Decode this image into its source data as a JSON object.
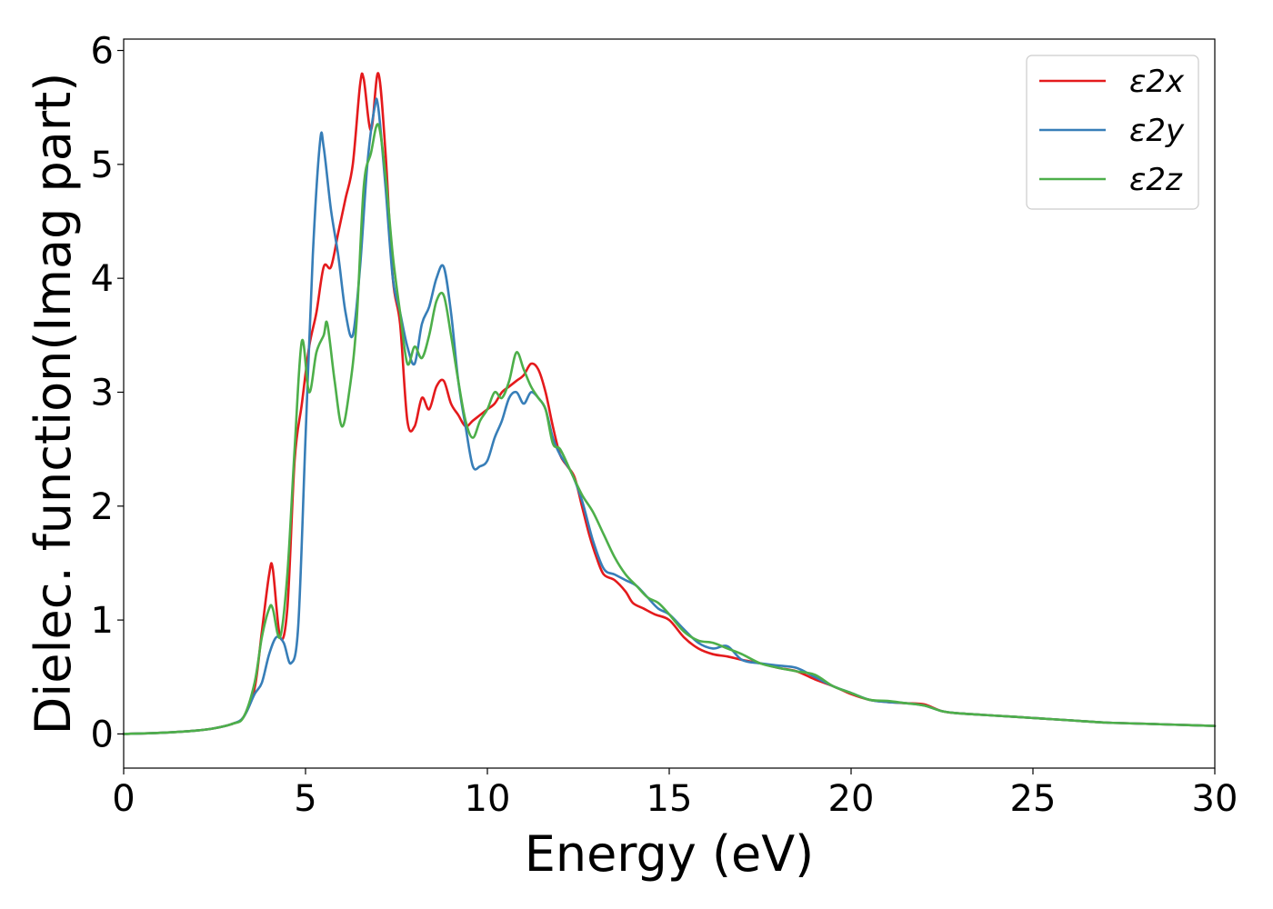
{
  "chart_data": {
    "type": "line",
    "xlabel": "Energy (eV)",
    "ylabel": "Dielec. function(Imag part)",
    "xlim": [
      0,
      30
    ],
    "ylim": [
      -0.3,
      6.1
    ],
    "xticks": [
      0,
      5,
      10,
      15,
      20,
      25,
      30
    ],
    "yticks": [
      0,
      1,
      2,
      3,
      4,
      5,
      6
    ],
    "grid": false,
    "legend_position": "top-right",
    "series": [
      {
        "name": "ε2x",
        "color": "#e41a1c",
        "x": [
          0,
          1,
          2,
          2.5,
          3,
          3.3,
          3.6,
          3.8,
          4.0,
          4.1,
          4.3,
          4.5,
          4.7,
          4.9,
          5.1,
          5.3,
          5.5,
          5.7,
          5.9,
          6.1,
          6.3,
          6.5,
          6.6,
          6.8,
          7.0,
          7.2,
          7.4,
          7.6,
          7.8,
          8.0,
          8.2,
          8.4,
          8.6,
          8.8,
          9.0,
          9.2,
          9.4,
          9.6,
          9.8,
          10.0,
          10.2,
          10.4,
          10.6,
          10.8,
          11.0,
          11.2,
          11.4,
          11.6,
          11.8,
          12.0,
          12.2,
          12.4,
          12.6,
          12.8,
          13.0,
          13.2,
          13.5,
          13.8,
          14.0,
          14.3,
          14.6,
          15.0,
          15.4,
          15.8,
          16.2,
          16.6,
          17.0,
          17.5,
          18.0,
          18.5,
          19.0,
          19.5,
          20.0,
          20.5,
          21.0,
          21.5,
          22.0,
          22.5,
          23.0,
          24.0,
          25.0,
          26.0,
          27.0,
          28.0,
          29.0,
          30.0
        ],
        "values": [
          0.0,
          0.01,
          0.03,
          0.05,
          0.09,
          0.15,
          0.4,
          0.9,
          1.4,
          1.45,
          0.85,
          1.1,
          2.4,
          2.9,
          3.4,
          3.7,
          4.1,
          4.1,
          4.4,
          4.7,
          5.0,
          5.7,
          5.75,
          5.3,
          5.8,
          5.1,
          4.0,
          3.6,
          2.75,
          2.7,
          2.95,
          2.85,
          3.05,
          3.1,
          2.9,
          2.8,
          2.7,
          2.75,
          2.8,
          2.85,
          2.9,
          3.0,
          3.05,
          3.1,
          3.15,
          3.25,
          3.2,
          3.0,
          2.7,
          2.45,
          2.35,
          2.25,
          2.0,
          1.75,
          1.55,
          1.4,
          1.35,
          1.25,
          1.15,
          1.1,
          1.05,
          1.0,
          0.85,
          0.75,
          0.7,
          0.68,
          0.65,
          0.62,
          0.58,
          0.55,
          0.48,
          0.42,
          0.35,
          0.3,
          0.28,
          0.27,
          0.26,
          0.2,
          0.18,
          0.16,
          0.14,
          0.12,
          0.1,
          0.09,
          0.08,
          0.07
        ]
      },
      {
        "name": "ε2y",
        "color": "#377eb8",
        "x": [
          0,
          1,
          2,
          2.5,
          3,
          3.3,
          3.6,
          3.8,
          4.0,
          4.2,
          4.4,
          4.6,
          4.8,
          5.0,
          5.2,
          5.4,
          5.5,
          5.7,
          5.9,
          6.1,
          6.3,
          6.5,
          6.7,
          6.9,
          7.0,
          7.2,
          7.4,
          7.6,
          7.8,
          8.0,
          8.2,
          8.4,
          8.6,
          8.8,
          9.0,
          9.2,
          9.4,
          9.6,
          9.8,
          10.0,
          10.2,
          10.4,
          10.6,
          10.8,
          11.0,
          11.2,
          11.4,
          11.6,
          11.8,
          12.0,
          12.3,
          12.6,
          12.9,
          13.2,
          13.5,
          13.8,
          14.1,
          14.4,
          14.7,
          15.0,
          15.4,
          15.8,
          16.2,
          16.6,
          17.0,
          17.5,
          18.0,
          18.5,
          19.0,
          19.5,
          20.0,
          20.5,
          21.0,
          21.5,
          22.0,
          22.5,
          23.0,
          24.0,
          25.0,
          26.0,
          27.0,
          28.0,
          29.0,
          30.0
        ],
        "values": [
          0.0,
          0.01,
          0.03,
          0.05,
          0.09,
          0.15,
          0.35,
          0.45,
          0.7,
          0.85,
          0.8,
          0.62,
          0.95,
          2.6,
          4.2,
          5.2,
          5.15,
          4.6,
          4.2,
          3.7,
          3.5,
          4.1,
          5.0,
          5.5,
          5.5,
          4.8,
          4.0,
          3.7,
          3.4,
          3.25,
          3.6,
          3.75,
          4.0,
          4.1,
          3.7,
          3.1,
          2.7,
          2.35,
          2.35,
          2.4,
          2.6,
          2.75,
          2.95,
          3.0,
          2.9,
          3.0,
          2.95,
          2.85,
          2.6,
          2.45,
          2.3,
          2.05,
          1.7,
          1.45,
          1.4,
          1.35,
          1.3,
          1.2,
          1.1,
          1.05,
          0.92,
          0.8,
          0.75,
          0.77,
          0.65,
          0.62,
          0.6,
          0.58,
          0.5,
          0.42,
          0.36,
          0.3,
          0.28,
          0.27,
          0.25,
          0.2,
          0.18,
          0.16,
          0.14,
          0.12,
          0.1,
          0.09,
          0.08,
          0.07
        ]
      },
      {
        "name": "ε2z",
        "color": "#4daf4a",
        "x": [
          0,
          1,
          2,
          2.5,
          3,
          3.3,
          3.6,
          3.8,
          4.0,
          4.1,
          4.3,
          4.5,
          4.7,
          4.9,
          5.1,
          5.3,
          5.5,
          5.6,
          5.8,
          6.0,
          6.2,
          6.4,
          6.6,
          6.8,
          7.0,
          7.2,
          7.4,
          7.6,
          7.8,
          8.0,
          8.2,
          8.4,
          8.6,
          8.8,
          9.0,
          9.2,
          9.4,
          9.6,
          9.8,
          10.0,
          10.2,
          10.4,
          10.6,
          10.8,
          11.0,
          11.2,
          11.4,
          11.6,
          11.8,
          12.0,
          12.3,
          12.6,
          12.9,
          13.2,
          13.5,
          13.8,
          14.1,
          14.4,
          14.7,
          15.0,
          15.4,
          15.8,
          16.2,
          16.6,
          17.0,
          17.5,
          18.0,
          18.5,
          19.0,
          19.5,
          20.0,
          20.5,
          21.0,
          21.5,
          22.0,
          22.5,
          23.0,
          24.0,
          25.0,
          26.0,
          27.0,
          28.0,
          29.0,
          30.0
        ],
        "values": [
          0.0,
          0.01,
          0.03,
          0.05,
          0.09,
          0.15,
          0.45,
          0.85,
          1.1,
          1.1,
          0.85,
          1.4,
          2.5,
          3.45,
          3.0,
          3.35,
          3.5,
          3.6,
          3.1,
          2.7,
          3.0,
          3.6,
          4.8,
          5.1,
          5.35,
          4.9,
          4.2,
          3.7,
          3.25,
          3.4,
          3.3,
          3.5,
          3.8,
          3.85,
          3.5,
          3.1,
          2.75,
          2.6,
          2.75,
          2.85,
          3.0,
          2.95,
          3.1,
          3.35,
          3.2,
          3.05,
          2.95,
          2.85,
          2.55,
          2.5,
          2.3,
          2.1,
          1.95,
          1.75,
          1.55,
          1.4,
          1.3,
          1.2,
          1.15,
          1.05,
          0.9,
          0.82,
          0.8,
          0.75,
          0.7,
          0.62,
          0.58,
          0.55,
          0.52,
          0.42,
          0.36,
          0.3,
          0.29,
          0.27,
          0.25,
          0.2,
          0.18,
          0.16,
          0.14,
          0.12,
          0.1,
          0.09,
          0.08,
          0.07
        ]
      }
    ]
  }
}
